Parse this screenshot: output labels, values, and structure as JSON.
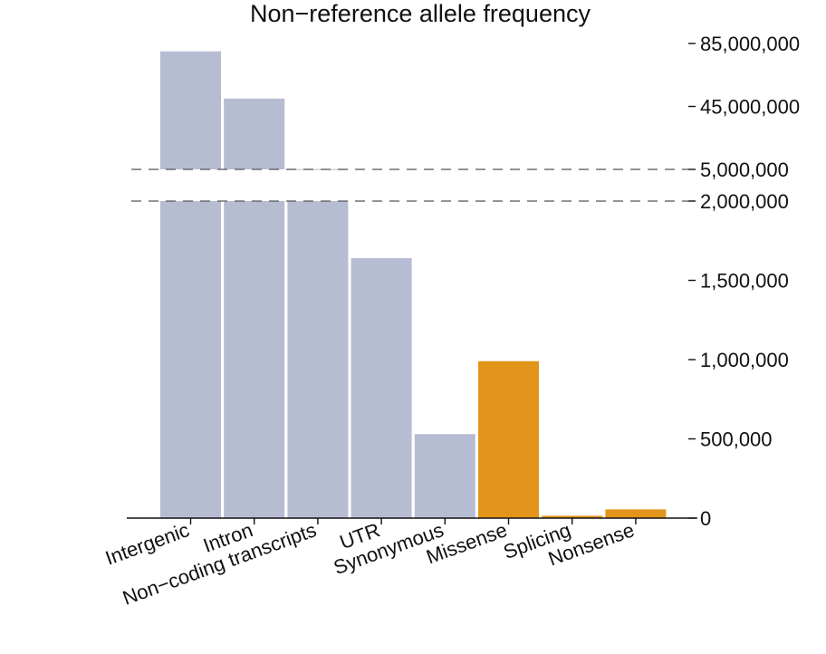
{
  "chart_data": {
    "type": "bar",
    "title": "Non−reference allele frequency",
    "categories": [
      "Intergenic",
      "Intron",
      "Non−coding transcripts",
      "UTR",
      "Synonymous",
      "Missense",
      "Splicing",
      "Nonsense"
    ],
    "values": [
      80000000,
      50000000,
      5200000,
      1640000,
      530000,
      990000,
      15000,
      55000
    ],
    "bar_colors": [
      "#b6bdd3",
      "#b6bdd3",
      "#b6bdd3",
      "#b6bdd3",
      "#b6bdd3",
      "#e3941a",
      "#e3941a",
      "#e3941a"
    ],
    "y_axis": {
      "position": "right",
      "broken": true,
      "lower_segment_range": [
        0,
        2000000
      ],
      "upper_segment_range": [
        5000000,
        85000000
      ],
      "ticks": [
        {
          "value": 0,
          "label": "0"
        },
        {
          "value": 500000,
          "label": "500,000"
        },
        {
          "value": 1000000,
          "label": "1,000,000"
        },
        {
          "value": 1500000,
          "label": "1,500,000"
        },
        {
          "value": 2000000,
          "label": "2,000,000"
        },
        {
          "value": 5000000,
          "label": "5,000,000"
        },
        {
          "value": 45000000,
          "label": "45,000,000"
        },
        {
          "value": 85000000,
          "label": "85,000,000"
        }
      ]
    },
    "break_lines": "dashed",
    "grid": false,
    "legend": "none"
  }
}
